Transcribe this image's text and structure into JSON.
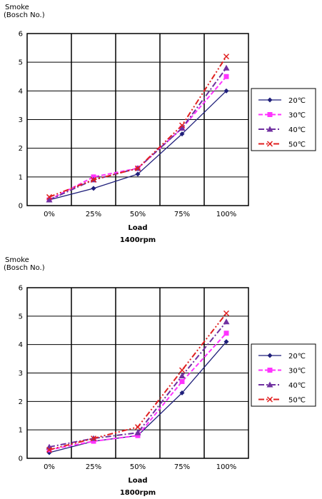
{
  "chart_data": [
    {
      "type": "line",
      "ylabel_line1": "Smoke",
      "ylabel_line2": "(Bosch No.)",
      "xlabel": "Load",
      "subtitle": "1400rpm",
      "categories": [
        "0%",
        "25%",
        "50%",
        "75%",
        "100%"
      ],
      "ylim": [
        0,
        6
      ],
      "yticks": [
        "0",
        "1",
        "2",
        "3",
        "4",
        "5",
        "6"
      ],
      "grid": true,
      "legend_position": "right",
      "series": [
        {
          "name": "20℃",
          "values": [
            0.2,
            0.6,
            1.1,
            2.5,
            4.0
          ],
          "color": "#1f1f7a",
          "marker": "diamond",
          "dash": "solid"
        },
        {
          "name": "30℃",
          "values": [
            0.2,
            1.0,
            1.3,
            2.7,
            4.5
          ],
          "color": "#ff33ff",
          "marker": "square",
          "dash": "dashed"
        },
        {
          "name": "40℃",
          "values": [
            0.2,
            0.9,
            1.3,
            2.7,
            4.8
          ],
          "color": "#7030a0",
          "marker": "triangle",
          "dash": "dashdot"
        },
        {
          "name": "50℃",
          "values": [
            0.3,
            0.9,
            1.3,
            2.8,
            5.2
          ],
          "color": "#e02020",
          "marker": "x",
          "dash": "dashdotdot"
        }
      ]
    },
    {
      "type": "line",
      "ylabel_line1": "Smoke",
      "ylabel_line2": "(Bosch No.)",
      "xlabel": "Load",
      "subtitle": "1800rpm",
      "categories": [
        "0%",
        "25%",
        "50%",
        "75%",
        "100%"
      ],
      "ylim": [
        0,
        6
      ],
      "yticks": [
        "0",
        "1",
        "2",
        "3",
        "4",
        "5",
        "6"
      ],
      "grid": true,
      "legend_position": "right",
      "series": [
        {
          "name": "20℃",
          "values": [
            0.2,
            0.6,
            0.8,
            2.3,
            4.1
          ],
          "color": "#1f1f7a",
          "marker": "diamond",
          "dash": "solid"
        },
        {
          "name": "30℃",
          "values": [
            0.3,
            0.6,
            0.8,
            2.7,
            4.4
          ],
          "color": "#ff33ff",
          "marker": "square",
          "dash": "dashed"
        },
        {
          "name": "40℃",
          "values": [
            0.4,
            0.7,
            0.9,
            2.9,
            4.8
          ],
          "color": "#7030a0",
          "marker": "triangle",
          "dash": "dashdot"
        },
        {
          "name": "50℃",
          "values": [
            0.3,
            0.7,
            1.1,
            3.1,
            5.1
          ],
          "color": "#e02020",
          "marker": "x",
          "dash": "dashdotdot"
        }
      ]
    }
  ]
}
